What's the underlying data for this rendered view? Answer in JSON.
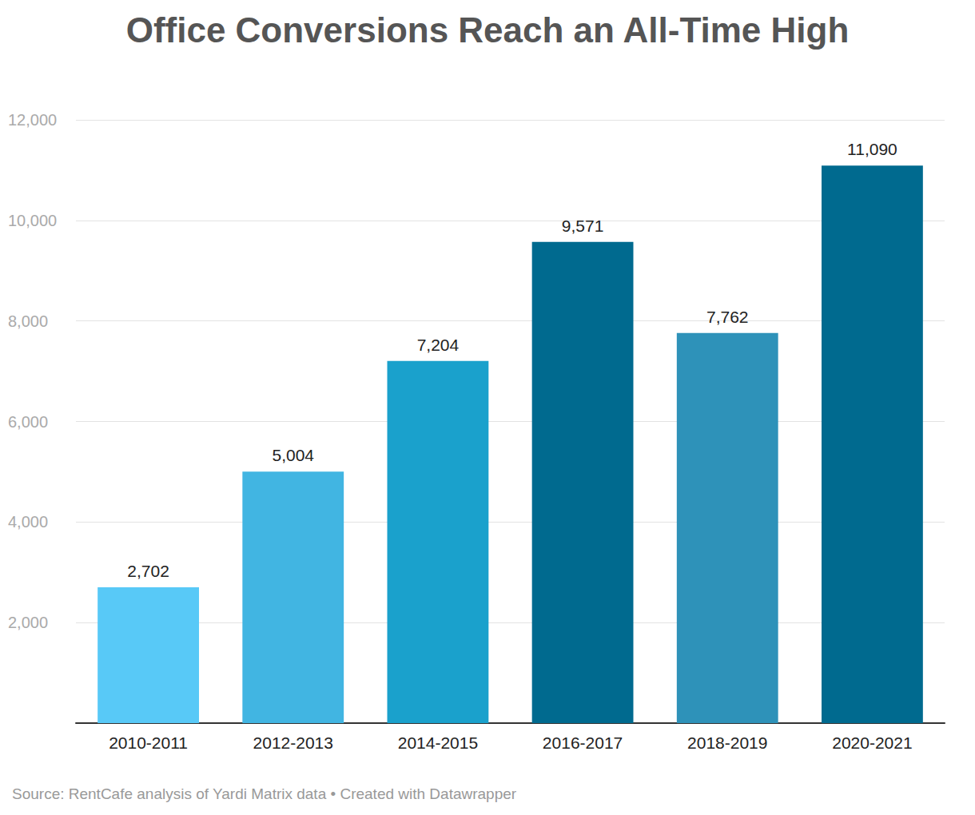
{
  "chart_data": {
    "type": "bar",
    "title": "Office Conversions Reach an All-Time High",
    "source": "Source: RentCafe analysis of Yardi Matrix data • Created with Datawrapper",
    "categories": [
      "2010-2011",
      "2012-2013",
      "2014-2015",
      "2016-2017",
      "2018-2019",
      "2020-2021"
    ],
    "values": [
      2702,
      5004,
      7204,
      9571,
      7762,
      11090
    ],
    "value_labels": [
      "2,702",
      "5,004",
      "7,204",
      "9,571",
      "7,762",
      "11,090"
    ],
    "colors": [
      "#58c9f7",
      "#41b5e2",
      "#1aa1cc",
      "#006a8f",
      "#2e92b9",
      "#006a8f"
    ],
    "ylim": [
      0,
      12000
    ],
    "yticks": [
      {
        "value": 2000,
        "label": "2,000"
      },
      {
        "value": 4000,
        "label": "4,000"
      },
      {
        "value": 6000,
        "label": "6,000"
      },
      {
        "value": 8000,
        "label": "8,000"
      },
      {
        "value": 10000,
        "label": "10,000"
      },
      {
        "value": 12000,
        "label": "12,000"
      }
    ],
    "grid": true,
    "data_labels": true
  }
}
